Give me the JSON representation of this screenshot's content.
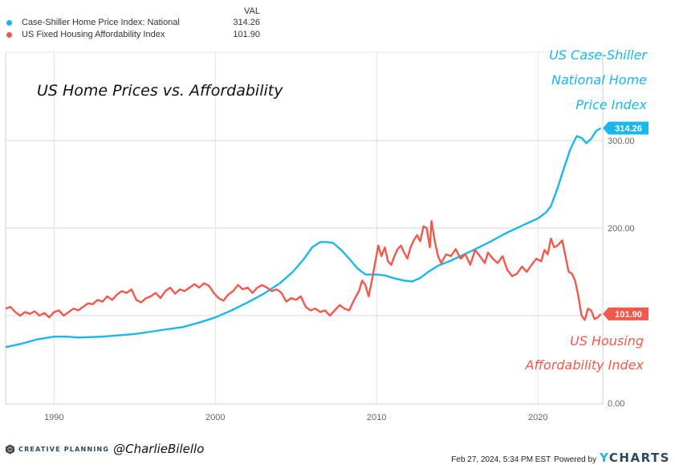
{
  "legend": {
    "header": "VAL",
    "items": [
      {
        "name": "Case-Shiller Home Price Index: National",
        "value": "314.26",
        "color": "#1ab7ea"
      },
      {
        "name": "US Fixed Housing Affordability Index",
        "value": "101.90",
        "color": "#f2594b"
      }
    ]
  },
  "chart_data": {
    "type": "line",
    "title": "US Home Prices vs. Affordability",
    "xlabel": "",
    "ylabel": "",
    "xlim": [
      1987.0,
      2024.0
    ],
    "ylim": [
      0,
      340
    ],
    "grid": true,
    "x_ticks": [
      "1990",
      "2000",
      "2010",
      "2020"
    ],
    "x_tick_values": [
      1990,
      2000,
      2010,
      2020
    ],
    "y_ticks": [
      "0.00",
      "200.00",
      "300.00"
    ],
    "y_tick_values": [
      0,
      200,
      300
    ],
    "legend_position": "top-left",
    "series": [
      {
        "name": "Case-Shiller Home Price Index: National",
        "color": "#1ab7ea",
        "last_value_label": "314.26",
        "annotation": [
          "US Case-Shiller",
          "National Home",
          "Price Index"
        ],
        "points": [
          [
            1987.0,
            64
          ],
          [
            1988.0,
            68
          ],
          [
            1989.0,
            73
          ],
          [
            1990.0,
            76
          ],
          [
            1990.8,
            76
          ],
          [
            1991.5,
            75
          ],
          [
            1993.0,
            76
          ],
          [
            1995.0,
            79
          ],
          [
            1996.5,
            83
          ],
          [
            1998.0,
            87
          ],
          [
            1999.0,
            92
          ],
          [
            2000.0,
            98
          ],
          [
            2001.0,
            106
          ],
          [
            2002.0,
            115
          ],
          [
            2003.0,
            125
          ],
          [
            2004.0,
            137
          ],
          [
            2004.8,
            150
          ],
          [
            2005.5,
            165
          ],
          [
            2006.0,
            178
          ],
          [
            2006.5,
            184
          ],
          [
            2006.9,
            184
          ],
          [
            2007.3,
            183
          ],
          [
            2007.8,
            175
          ],
          [
            2008.3,
            165
          ],
          [
            2008.8,
            154
          ],
          [
            2009.3,
            147
          ],
          [
            2010.0,
            147
          ],
          [
            2010.5,
            146
          ],
          [
            2011.0,
            143
          ],
          [
            2011.7,
            140
          ],
          [
            2012.2,
            139
          ],
          [
            2012.7,
            143
          ],
          [
            2013.2,
            150
          ],
          [
            2013.8,
            157
          ],
          [
            2014.5,
            162
          ],
          [
            2015.2,
            168
          ],
          [
            2016.0,
            175
          ],
          [
            2017.0,
            184
          ],
          [
            2018.0,
            194
          ],
          [
            2018.8,
            201
          ],
          [
            2019.5,
            207
          ],
          [
            2020.0,
            211
          ],
          [
            2020.5,
            218
          ],
          [
            2020.8,
            225
          ],
          [
            2021.2,
            245
          ],
          [
            2021.6,
            268
          ],
          [
            2022.0,
            290
          ],
          [
            2022.4,
            305
          ],
          [
            2022.7,
            303
          ],
          [
            2023.0,
            297
          ],
          [
            2023.3,
            302
          ],
          [
            2023.6,
            311
          ],
          [
            2023.9,
            314.26
          ]
        ]
      },
      {
        "name": "US Fixed Housing Affordability Index",
        "color": "#f2594b",
        "last_value_label": "101.90",
        "annotation": [
          "US Housing",
          "Affordability Index"
        ],
        "points": [
          [
            1987.0,
            108
          ],
          [
            1987.3,
            110
          ],
          [
            1987.6,
            104
          ],
          [
            1987.9,
            100
          ],
          [
            1988.2,
            104
          ],
          [
            1988.5,
            102
          ],
          [
            1988.8,
            105
          ],
          [
            1989.1,
            100
          ],
          [
            1989.4,
            103
          ],
          [
            1989.7,
            98
          ],
          [
            1990.0,
            104
          ],
          [
            1990.3,
            106
          ],
          [
            1990.6,
            100
          ],
          [
            1990.9,
            104
          ],
          [
            1991.2,
            108
          ],
          [
            1991.5,
            106
          ],
          [
            1991.8,
            110
          ],
          [
            1992.1,
            114
          ],
          [
            1992.4,
            113
          ],
          [
            1992.7,
            118
          ],
          [
            1993.0,
            116
          ],
          [
            1993.3,
            122
          ],
          [
            1993.6,
            118
          ],
          [
            1993.9,
            124
          ],
          [
            1994.2,
            128
          ],
          [
            1994.5,
            126
          ],
          [
            1994.8,
            130
          ],
          [
            1995.1,
            118
          ],
          [
            1995.4,
            115
          ],
          [
            1995.7,
            120
          ],
          [
            1996.0,
            122
          ],
          [
            1996.3,
            126
          ],
          [
            1996.6,
            120
          ],
          [
            1996.9,
            128
          ],
          [
            1997.2,
            132
          ],
          [
            1997.5,
            125
          ],
          [
            1997.8,
            130
          ],
          [
            1998.1,
            128
          ],
          [
            1998.4,
            132
          ],
          [
            1998.7,
            136
          ],
          [
            1999.0,
            132
          ],
          [
            1999.3,
            137
          ],
          [
            1999.6,
            134
          ],
          [
            1999.9,
            126
          ],
          [
            2000.2,
            120
          ],
          [
            2000.5,
            117
          ],
          [
            2000.8,
            124
          ],
          [
            2001.1,
            128
          ],
          [
            2001.4,
            135
          ],
          [
            2001.7,
            130
          ],
          [
            2002.0,
            132
          ],
          [
            2002.3,
            126
          ],
          [
            2002.6,
            132
          ],
          [
            2002.9,
            135
          ],
          [
            2003.2,
            132
          ],
          [
            2003.5,
            128
          ],
          [
            2003.8,
            130
          ],
          [
            2004.1,
            126
          ],
          [
            2004.4,
            116
          ],
          [
            2004.7,
            120
          ],
          [
            2005.0,
            118
          ],
          [
            2005.3,
            122
          ],
          [
            2005.6,
            110
          ],
          [
            2005.9,
            106
          ],
          [
            2006.2,
            108
          ],
          [
            2006.5,
            104
          ],
          [
            2006.8,
            106
          ],
          [
            2007.1,
            100
          ],
          [
            2007.4,
            106
          ],
          [
            2007.7,
            112
          ],
          [
            2008.0,
            108
          ],
          [
            2008.3,
            106
          ],
          [
            2008.6,
            118
          ],
          [
            2008.9,
            128
          ],
          [
            2009.1,
            140
          ],
          [
            2009.3,
            135
          ],
          [
            2009.5,
            122
          ],
          [
            2009.7,
            140
          ],
          [
            2009.9,
            160
          ],
          [
            2010.1,
            180
          ],
          [
            2010.3,
            168
          ],
          [
            2010.5,
            178
          ],
          [
            2010.7,
            162
          ],
          [
            2010.9,
            158
          ],
          [
            2011.1,
            168
          ],
          [
            2011.3,
            176
          ],
          [
            2011.5,
            180
          ],
          [
            2011.7,
            172
          ],
          [
            2011.9,
            165
          ],
          [
            2012.1,
            178
          ],
          [
            2012.3,
            186
          ],
          [
            2012.5,
            192
          ],
          [
            2012.7,
            185
          ],
          [
            2012.9,
            202
          ],
          [
            2013.1,
            200
          ],
          [
            2013.3,
            178
          ],
          [
            2013.4,
            208
          ],
          [
            2013.6,
            185
          ],
          [
            2013.8,
            168
          ],
          [
            2014.0,
            160
          ],
          [
            2014.3,
            170
          ],
          [
            2014.6,
            168
          ],
          [
            2014.9,
            176
          ],
          [
            2015.2,
            165
          ],
          [
            2015.5,
            170
          ],
          [
            2015.8,
            158
          ],
          [
            2016.1,
            175
          ],
          [
            2016.4,
            168
          ],
          [
            2016.7,
            160
          ],
          [
            2016.9,
            172
          ],
          [
            2017.2,
            165
          ],
          [
            2017.5,
            160
          ],
          [
            2017.8,
            168
          ],
          [
            2018.1,
            152
          ],
          [
            2018.4,
            145
          ],
          [
            2018.7,
            148
          ],
          [
            2019.0,
            156
          ],
          [
            2019.3,
            150
          ],
          [
            2019.6,
            158
          ],
          [
            2019.9,
            165
          ],
          [
            2020.2,
            162
          ],
          [
            2020.4,
            175
          ],
          [
            2020.6,
            170
          ],
          [
            2020.8,
            188
          ],
          [
            2021.0,
            178
          ],
          [
            2021.2,
            180
          ],
          [
            2021.5,
            186
          ],
          [
            2021.7,
            168
          ],
          [
            2021.9,
            150
          ],
          [
            2022.1,
            148
          ],
          [
            2022.3,
            140
          ],
          [
            2022.5,
            122
          ],
          [
            2022.7,
            100
          ],
          [
            2022.9,
            95
          ],
          [
            2023.1,
            108
          ],
          [
            2023.3,
            106
          ],
          [
            2023.5,
            96
          ],
          [
            2023.7,
            98
          ],
          [
            2023.9,
            101.9
          ]
        ]
      }
    ]
  },
  "footer": {
    "brand": "CREATIVE PLANNING",
    "handle": "@CharlieBilello",
    "timestamp": "Feb 27, 2024, 5:34 PM EST",
    "powered_by": "Powered by",
    "provider": "CHARTS",
    "provider_initial": "Y"
  }
}
